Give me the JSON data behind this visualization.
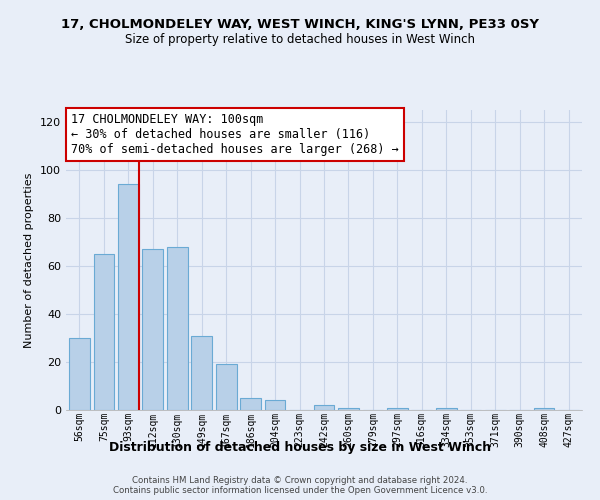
{
  "title_line1": "17, CHOLMONDELEY WAY, WEST WINCH, KING'S LYNN, PE33 0SY",
  "title_line2": "Size of property relative to detached houses in West Winch",
  "xlabel": "Distribution of detached houses by size in West Winch",
  "ylabel": "Number of detached properties",
  "bar_labels": [
    "56sqm",
    "75sqm",
    "93sqm",
    "112sqm",
    "130sqm",
    "149sqm",
    "167sqm",
    "186sqm",
    "204sqm",
    "223sqm",
    "242sqm",
    "260sqm",
    "279sqm",
    "297sqm",
    "316sqm",
    "334sqm",
    "353sqm",
    "371sqm",
    "390sqm",
    "408sqm",
    "427sqm"
  ],
  "bar_values": [
    30,
    65,
    94,
    67,
    68,
    31,
    19,
    5,
    4,
    0,
    2,
    1,
    0,
    1,
    0,
    1,
    0,
    0,
    0,
    1,
    0
  ],
  "bar_color": "#b8d0e8",
  "bar_edge_color": "#6aaad4",
  "ylim": [
    0,
    125
  ],
  "yticks": [
    0,
    20,
    40,
    60,
    80,
    100,
    120
  ],
  "property_line_index": 2,
  "property_line_color": "#cc0000",
  "annotation_title": "17 CHOLMONDELEY WAY: 100sqm",
  "annotation_line1": "← 30% of detached houses are smaller (116)",
  "annotation_line2": "70% of semi-detached houses are larger (268) →",
  "annotation_box_color": "#ffffff",
  "annotation_box_edge": "#cc0000",
  "footer_line1": "Contains HM Land Registry data © Crown copyright and database right 2024.",
  "footer_line2": "Contains public sector information licensed under the Open Government Licence v3.0.",
  "background_color": "#e8eef8",
  "grid_color": "#c8d4e8"
}
